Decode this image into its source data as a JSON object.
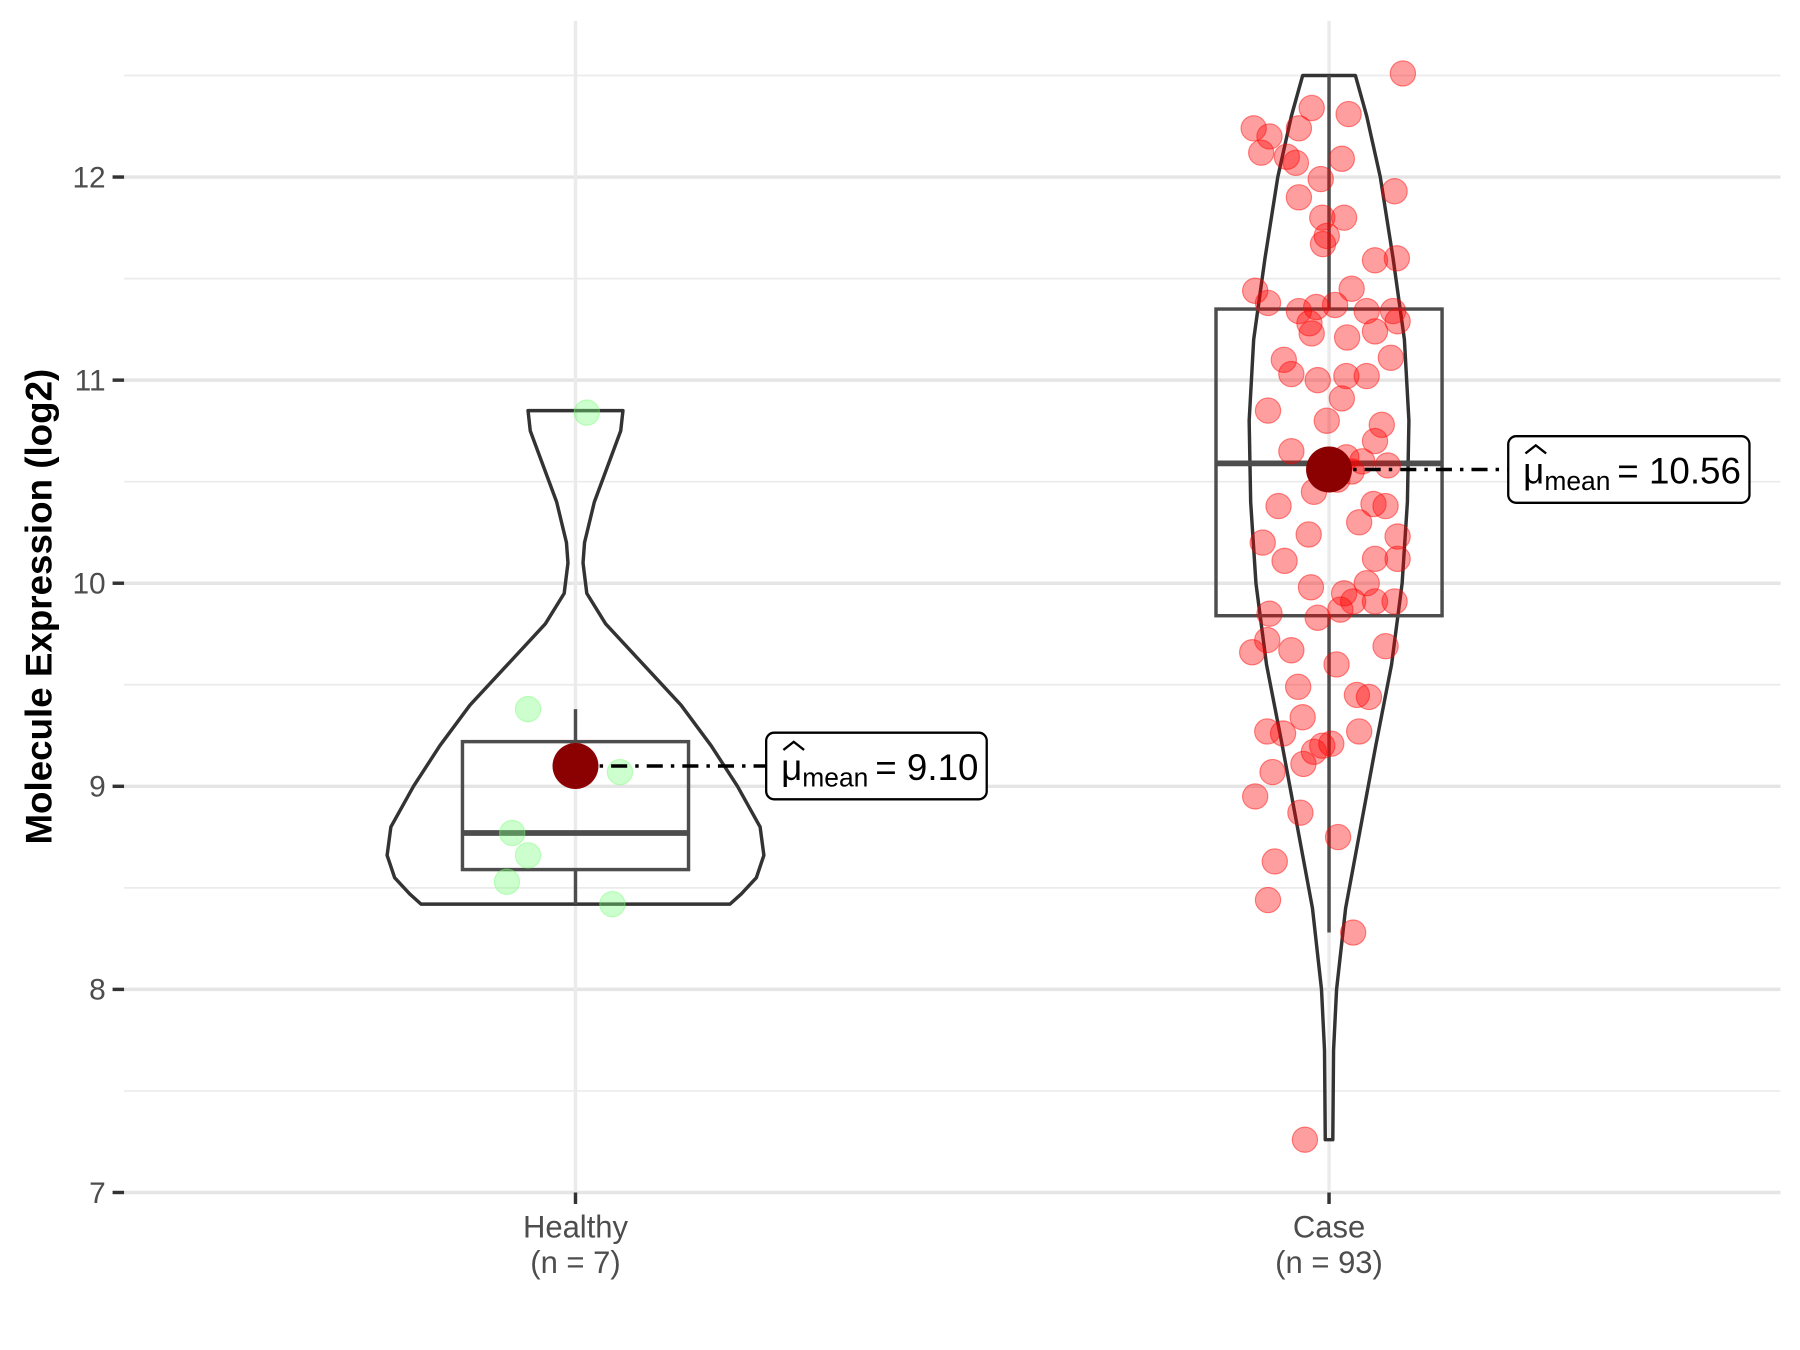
{
  "chart_data": {
    "type": "violin-box-jitter",
    "ylabel": "Molecule Expression (log2)",
    "xlabel": "",
    "ylim": [
      7,
      12.75
    ],
    "yticks": [
      7,
      8,
      9,
      10,
      11,
      12
    ],
    "grid": true,
    "groups": [
      {
        "name": "Healthy",
        "n_label": "(n = 7)",
        "point_color": "#7CFC7C",
        "mean": 9.1,
        "mean_symbol": "μ",
        "mean_sub": "mean",
        "mean_text": "= 9.10",
        "box": {
          "whisker_low": 8.42,
          "q1": 8.59,
          "median": 8.77,
          "q3": 9.22,
          "whisker_high": 9.38
        },
        "violin": [
          [
            10.85,
            0.063
          ],
          [
            10.75,
            0.06
          ],
          [
            10.6,
            0.045
          ],
          [
            10.4,
            0.025
          ],
          [
            10.2,
            0.012
          ],
          [
            10.1,
            0.01
          ],
          [
            9.95,
            0.015
          ],
          [
            9.8,
            0.04
          ],
          [
            9.6,
            0.09
          ],
          [
            9.4,
            0.14
          ],
          [
            9.2,
            0.18
          ],
          [
            9.0,
            0.215
          ],
          [
            8.8,
            0.245
          ],
          [
            8.66,
            0.25
          ],
          [
            8.55,
            0.24
          ],
          [
            8.47,
            0.22
          ],
          [
            8.42,
            0.205
          ]
        ],
        "points": [
          [
            10.84,
            0.015
          ],
          [
            9.38,
            -0.063
          ],
          [
            9.07,
            0.059
          ],
          [
            8.77,
            -0.084
          ],
          [
            8.66,
            -0.063
          ],
          [
            8.53,
            -0.091
          ],
          [
            8.42,
            0.049
          ]
        ]
      },
      {
        "name": "Case",
        "n_label": "(n = 93)",
        "point_color": "#FF0000",
        "mean": 10.56,
        "mean_symbol": "μ",
        "mean_sub": "mean",
        "mean_text": "= 10.56",
        "box": {
          "whisker_low": 8.28,
          "q1": 9.84,
          "median": 10.59,
          "q3": 11.35,
          "whisker_high": 12.5
        },
        "violin": [
          [
            12.5,
            0.035
          ],
          [
            12.3,
            0.05
          ],
          [
            12.0,
            0.068
          ],
          [
            11.6,
            0.085
          ],
          [
            11.2,
            0.1
          ],
          [
            10.8,
            0.106
          ],
          [
            10.4,
            0.104
          ],
          [
            10.0,
            0.097
          ],
          [
            9.6,
            0.083
          ],
          [
            9.2,
            0.062
          ],
          [
            8.8,
            0.042
          ],
          [
            8.4,
            0.022
          ],
          [
            8.0,
            0.01
          ],
          [
            7.7,
            0.006
          ],
          [
            7.26,
            0.005
          ]
        ],
        "points": [
          [
            12.51,
            0.098
          ],
          [
            12.24,
            -0.1
          ],
          [
            12.2,
            -0.079
          ],
          [
            12.34,
            -0.023
          ],
          [
            12.31,
            0.026
          ],
          [
            12.24,
            -0.04
          ],
          [
            12.12,
            -0.09
          ],
          [
            12.1,
            -0.056
          ],
          [
            12.07,
            -0.044
          ],
          [
            12.09,
            0.017
          ],
          [
            11.99,
            -0.011
          ],
          [
            11.93,
            0.087
          ],
          [
            11.9,
            -0.04
          ],
          [
            11.8,
            -0.009
          ],
          [
            11.8,
            0.02
          ],
          [
            11.71,
            -0.003
          ],
          [
            11.67,
            -0.008
          ],
          [
            11.59,
            0.061
          ],
          [
            11.6,
            0.09
          ],
          [
            11.44,
            -0.098
          ],
          [
            11.38,
            -0.081
          ],
          [
            11.34,
            -0.04
          ],
          [
            11.37,
            0.008
          ],
          [
            11.36,
            -0.017
          ],
          [
            11.34,
            0.05
          ],
          [
            11.34,
            0.085
          ],
          [
            11.28,
            -0.026
          ],
          [
            11.29,
            0.091
          ],
          [
            11.23,
            -0.023
          ],
          [
            11.21,
            0.024
          ],
          [
            11.24,
            0.061
          ],
          [
            11.11,
            0.082
          ],
          [
            11.03,
            -0.05
          ],
          [
            11.0,
            -0.015
          ],
          [
            11.02,
            0.023
          ],
          [
            11.02,
            0.05
          ],
          [
            10.91,
            0.017
          ],
          [
            10.85,
            -0.081
          ],
          [
            10.8,
            -0.003
          ],
          [
            10.78,
            0.07
          ],
          [
            10.7,
            0.061
          ],
          [
            10.62,
            0.023
          ],
          [
            10.6,
            0.044
          ],
          [
            10.58,
            0.078
          ],
          [
            10.51,
            0.011
          ],
          [
            10.38,
            -0.067
          ],
          [
            10.39,
            0.059
          ],
          [
            10.38,
            0.075
          ],
          [
            10.3,
            0.04
          ],
          [
            10.24,
            -0.027
          ],
          [
            10.23,
            0.091
          ],
          [
            10.2,
            -0.088
          ],
          [
            10.12,
            0.061
          ],
          [
            10.11,
            -0.059
          ],
          [
            10.12,
            0.091
          ],
          [
            10.0,
            0.05
          ],
          [
            9.98,
            -0.024
          ],
          [
            9.91,
            0.032
          ],
          [
            9.91,
            0.061
          ],
          [
            9.91,
            0.087
          ],
          [
            9.85,
            -0.079
          ],
          [
            9.83,
            -0.015
          ],
          [
            9.87,
            0.015
          ],
          [
            9.72,
            -0.082
          ],
          [
            9.66,
            -0.102
          ],
          [
            9.67,
            -0.05
          ],
          [
            9.69,
            0.075
          ],
          [
            9.49,
            -0.041
          ],
          [
            9.45,
            0.037
          ],
          [
            9.44,
            0.053
          ],
          [
            9.34,
            -0.035
          ],
          [
            9.27,
            -0.082
          ],
          [
            9.26,
            -0.061
          ],
          [
            9.27,
            0.04
          ],
          [
            9.2,
            -0.009
          ],
          [
            9.21,
            0.003
          ],
          [
            9.17,
            -0.02
          ],
          [
            9.11,
            -0.034
          ],
          [
            9.07,
            -0.075
          ],
          [
            8.95,
            -0.098
          ],
          [
            8.87,
            -0.038
          ],
          [
            8.75,
            0.012
          ],
          [
            8.63,
            -0.072
          ],
          [
            8.44,
            -0.081
          ],
          [
            8.28,
            0.032
          ],
          [
            7.26,
            -0.032
          ],
          [
            10.55,
            0.03
          ],
          [
            10.45,
            -0.02
          ],
          [
            11.1,
            -0.06
          ],
          [
            9.95,
            0.02
          ],
          [
            10.65,
            -0.05
          ],
          [
            11.45,
            0.03
          ],
          [
            9.6,
            0.01
          ]
        ]
      }
    ],
    "mean_point_color": "#8B0000"
  }
}
